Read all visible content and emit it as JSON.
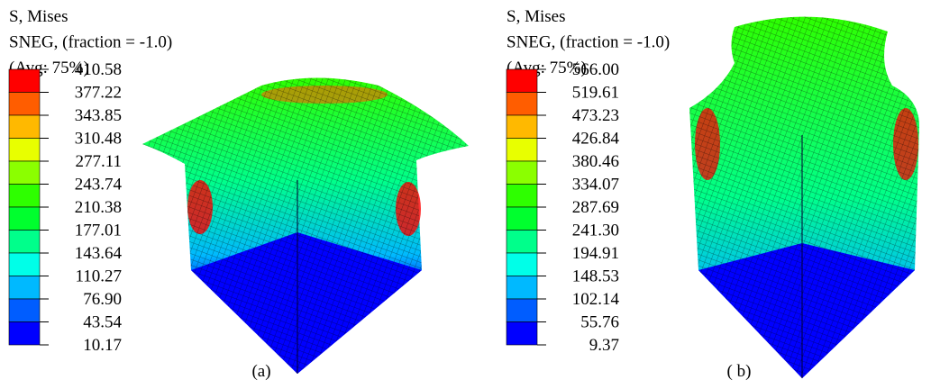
{
  "panels": [
    {
      "legend_title": [
        "S, Mises",
        "SNEG, (fraction = -1.0)",
        "(Avg: 75%)"
      ],
      "legend_labels": [
        "410.58",
        "377.22",
        "343.85",
        "310.48",
        "277.11",
        "243.74",
        "210.38",
        "177.01",
        "143.64",
        "110.27",
        "76.90",
        "43.54",
        "10.17"
      ],
      "caption": "(a)"
    },
    {
      "legend_title": [
        "S, Mises",
        "SNEG, (fraction = -1.0)",
        "(Avg: 75%)"
      ],
      "legend_labels": [
        "566.00",
        "519.61",
        "473.23",
        "426.84",
        "380.46",
        "334.07",
        "287.69",
        "241.30",
        "194.91",
        "148.53",
        "102.14",
        "55.76",
        "9.37"
      ],
      "caption": "( b)"
    }
  ],
  "legend_colors": [
    "#ff0000",
    "#ff5d00",
    "#ffb900",
    "#e8ff00",
    "#8bff00",
    "#2eff00",
    "#00ff2e",
    "#00ff8b",
    "#00ffe8",
    "#00b9ff",
    "#005dff",
    "#0000ff"
  ]
}
